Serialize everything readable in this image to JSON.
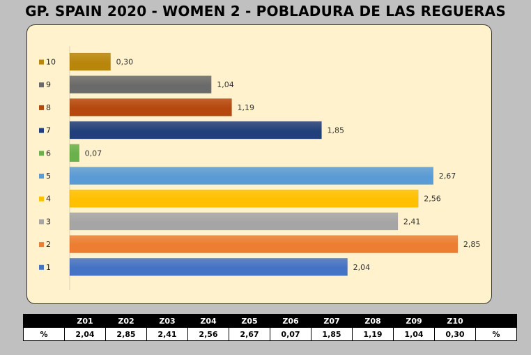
{
  "chart_data": {
    "type": "bar",
    "orientation": "horizontal",
    "title": "GP. SPAIN 2020 - WOMEN 2 - POBLADURA DE LAS REGUERAS",
    "categories": [
      "10",
      "9",
      "8",
      "7",
      "6",
      "5",
      "4",
      "3",
      "2",
      "1"
    ],
    "values": [
      0.3,
      1.04,
      1.19,
      1.85,
      0.07,
      2.67,
      2.56,
      2.41,
      2.85,
      2.04
    ],
    "data_labels": [
      "0,30",
      "1,04",
      "1,19",
      "1,85",
      "0,07",
      "2,67",
      "2,56",
      "2,41",
      "2,85",
      "2,04"
    ],
    "colors": [
      "#b8860b",
      "#6a6a6a",
      "#b5480e",
      "#213f7a",
      "#6ab04c",
      "#5b9bd5",
      "#ffc000",
      "#a5a5a5",
      "#ed7d31",
      "#4472c4"
    ],
    "xlim": [
      0,
      3.0
    ],
    "grid": false,
    "legend": "left",
    "background": "#fff2cc"
  },
  "table": {
    "headers": [
      "",
      "Z01",
      "Z02",
      "Z03",
      "Z04",
      "Z05",
      "Z06",
      "Z07",
      "Z08",
      "Z09",
      "Z10",
      ""
    ],
    "values": [
      "%",
      "2,04",
      "2,85",
      "2,41",
      "2,56",
      "2,67",
      "0,07",
      "1,85",
      "1,19",
      "1,04",
      "0,30",
      "%"
    ]
  }
}
